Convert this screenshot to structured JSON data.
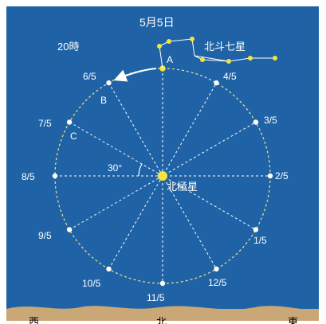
{
  "header": {
    "date": "5月5日",
    "time": "20時",
    "constellation": "北斗七星"
  },
  "center_label": "北極星",
  "angle_label": "30°",
  "point_labels": [
    "A",
    "B",
    "C"
  ],
  "months": [
    "2/5",
    "3/5",
    "4/5",
    "6/5",
    "7/5",
    "8/5",
    "9/5",
    "10/5",
    "11/5",
    "12/5",
    "1/5"
  ],
  "compass": {
    "west": "西",
    "north": "北",
    "east": "東"
  },
  "colors": {
    "background": "#1f63a6",
    "circle": "#f0e28a",
    "star": "#f5e43a",
    "dot": "#ffffff",
    "ground": "#caa777",
    "text": "#ffffff"
  }
}
